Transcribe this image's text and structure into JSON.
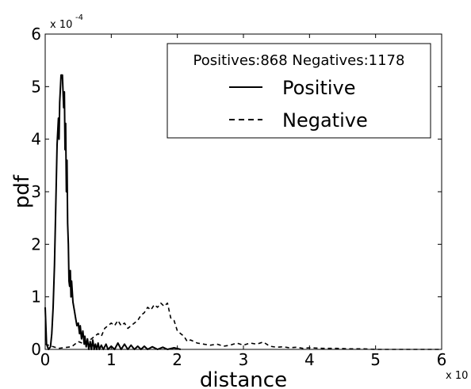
{
  "chart_data": {
    "type": "line",
    "xlabel": "distance",
    "ylabel": "pdf",
    "x_multiplier": {
      "base": "x 10",
      "exponent": ""
    },
    "y_multiplier": {
      "base": "x 10",
      "exponent": "-4"
    },
    "xlim": [
      0,
      6
    ],
    "ylim": [
      0,
      6
    ],
    "xticks": [
      "0",
      "1",
      "2",
      "3",
      "4",
      "5",
      "6"
    ],
    "yticks": [
      "0",
      "1",
      "2",
      "3",
      "4",
      "5",
      "6"
    ],
    "legend": {
      "title": "Positives:868 Negatives:1178",
      "placement": "top-right"
    },
    "series": [
      {
        "name": "Positive",
        "style": "solid",
        "color": "#000000",
        "points": [
          [
            0.0,
            0.8
          ],
          [
            0.02,
            0.1
          ],
          [
            0.05,
            0.0
          ],
          [
            0.08,
            0.05
          ],
          [
            0.1,
            0.3
          ],
          [
            0.12,
            0.8
          ],
          [
            0.14,
            1.6
          ],
          [
            0.16,
            2.7
          ],
          [
            0.18,
            3.9
          ],
          [
            0.2,
            4.4
          ],
          [
            0.21,
            4.0
          ],
          [
            0.22,
            4.7
          ],
          [
            0.24,
            5.22
          ],
          [
            0.26,
            5.22
          ],
          [
            0.28,
            4.6
          ],
          [
            0.29,
            4.9
          ],
          [
            0.3,
            3.8
          ],
          [
            0.31,
            4.3
          ],
          [
            0.32,
            3.0
          ],
          [
            0.33,
            3.6
          ],
          [
            0.34,
            2.4
          ],
          [
            0.35,
            2.0
          ],
          [
            0.36,
            1.3
          ],
          [
            0.37,
            1.2
          ],
          [
            0.38,
            1.5
          ],
          [
            0.39,
            1.0
          ],
          [
            0.4,
            1.3
          ],
          [
            0.42,
            0.9
          ],
          [
            0.44,
            0.75
          ],
          [
            0.46,
            0.6
          ],
          [
            0.48,
            0.45
          ],
          [
            0.5,
            0.5
          ],
          [
            0.52,
            0.3
          ],
          [
            0.53,
            0.45
          ],
          [
            0.55,
            0.2
          ],
          [
            0.57,
            0.35
          ],
          [
            0.59,
            0.1
          ],
          [
            0.6,
            0.25
          ],
          [
            0.62,
            0.05
          ],
          [
            0.64,
            0.2
          ],
          [
            0.66,
            0.0
          ],
          [
            0.68,
            0.15
          ],
          [
            0.7,
            0.0
          ],
          [
            0.72,
            0.18
          ],
          [
            0.74,
            0.0
          ],
          [
            0.76,
            0.1
          ],
          [
            0.78,
            0.0
          ],
          [
            0.8,
            0.12
          ],
          [
            0.82,
            0.0
          ],
          [
            0.85,
            0.08
          ],
          [
            0.88,
            0.0
          ],
          [
            0.92,
            0.1
          ],
          [
            0.95,
            0.0
          ],
          [
            1.0,
            0.06
          ],
          [
            1.05,
            0.0
          ],
          [
            1.1,
            0.12
          ],
          [
            1.15,
            0.0
          ],
          [
            1.2,
            0.1
          ],
          [
            1.25,
            0.0
          ],
          [
            1.3,
            0.08
          ],
          [
            1.35,
            0.0
          ],
          [
            1.4,
            0.06
          ],
          [
            1.45,
            0.0
          ],
          [
            1.5,
            0.06
          ],
          [
            1.55,
            0.0
          ],
          [
            1.62,
            0.05
          ],
          [
            1.7,
            0.0
          ],
          [
            1.78,
            0.04
          ],
          [
            1.85,
            0.0
          ],
          [
            1.95,
            0.03
          ],
          [
            2.05,
            0.0
          ]
        ]
      },
      {
        "name": "Negative",
        "style": "dashed",
        "color": "#000000",
        "points": [
          [
            0.0,
            0.1
          ],
          [
            0.2,
            0.02
          ],
          [
            0.4,
            0.05
          ],
          [
            0.5,
            0.15
          ],
          [
            0.6,
            0.1
          ],
          [
            0.7,
            0.2
          ],
          [
            0.8,
            0.3
          ],
          [
            0.85,
            0.25
          ],
          [
            0.9,
            0.4
          ],
          [
            1.0,
            0.5
          ],
          [
            1.05,
            0.45
          ],
          [
            1.1,
            0.55
          ],
          [
            1.15,
            0.45
          ],
          [
            1.2,
            0.5
          ],
          [
            1.25,
            0.4
          ],
          [
            1.3,
            0.45
          ],
          [
            1.35,
            0.5
          ],
          [
            1.4,
            0.55
          ],
          [
            1.45,
            0.65
          ],
          [
            1.5,
            0.7
          ],
          [
            1.55,
            0.8
          ],
          [
            1.6,
            0.75
          ],
          [
            1.65,
            0.85
          ],
          [
            1.7,
            0.8
          ],
          [
            1.75,
            0.88
          ],
          [
            1.8,
            0.82
          ],
          [
            1.85,
            0.88
          ],
          [
            1.9,
            0.6
          ],
          [
            1.95,
            0.55
          ],
          [
            2.0,
            0.35
          ],
          [
            2.05,
            0.3
          ],
          [
            2.1,
            0.25
          ],
          [
            2.15,
            0.15
          ],
          [
            2.2,
            0.18
          ],
          [
            2.3,
            0.12
          ],
          [
            2.4,
            0.1
          ],
          [
            2.5,
            0.08
          ],
          [
            2.6,
            0.1
          ],
          [
            2.7,
            0.06
          ],
          [
            2.8,
            0.08
          ],
          [
            2.9,
            0.12
          ],
          [
            3.0,
            0.08
          ],
          [
            3.1,
            0.12
          ],
          [
            3.2,
            0.1
          ],
          [
            3.3,
            0.14
          ],
          [
            3.4,
            0.06
          ],
          [
            3.5,
            0.04
          ],
          [
            3.6,
            0.05
          ],
          [
            3.7,
            0.03
          ],
          [
            3.8,
            0.04
          ],
          [
            3.9,
            0.02
          ],
          [
            4.0,
            0.03
          ],
          [
            4.2,
            0.02
          ],
          [
            4.4,
            0.02
          ],
          [
            4.6,
            0.01
          ],
          [
            4.8,
            0.01
          ],
          [
            5.0,
            0.0
          ],
          [
            5.5,
            0.0
          ],
          [
            6.0,
            0.0
          ]
        ]
      }
    ],
    "grid": false
  }
}
